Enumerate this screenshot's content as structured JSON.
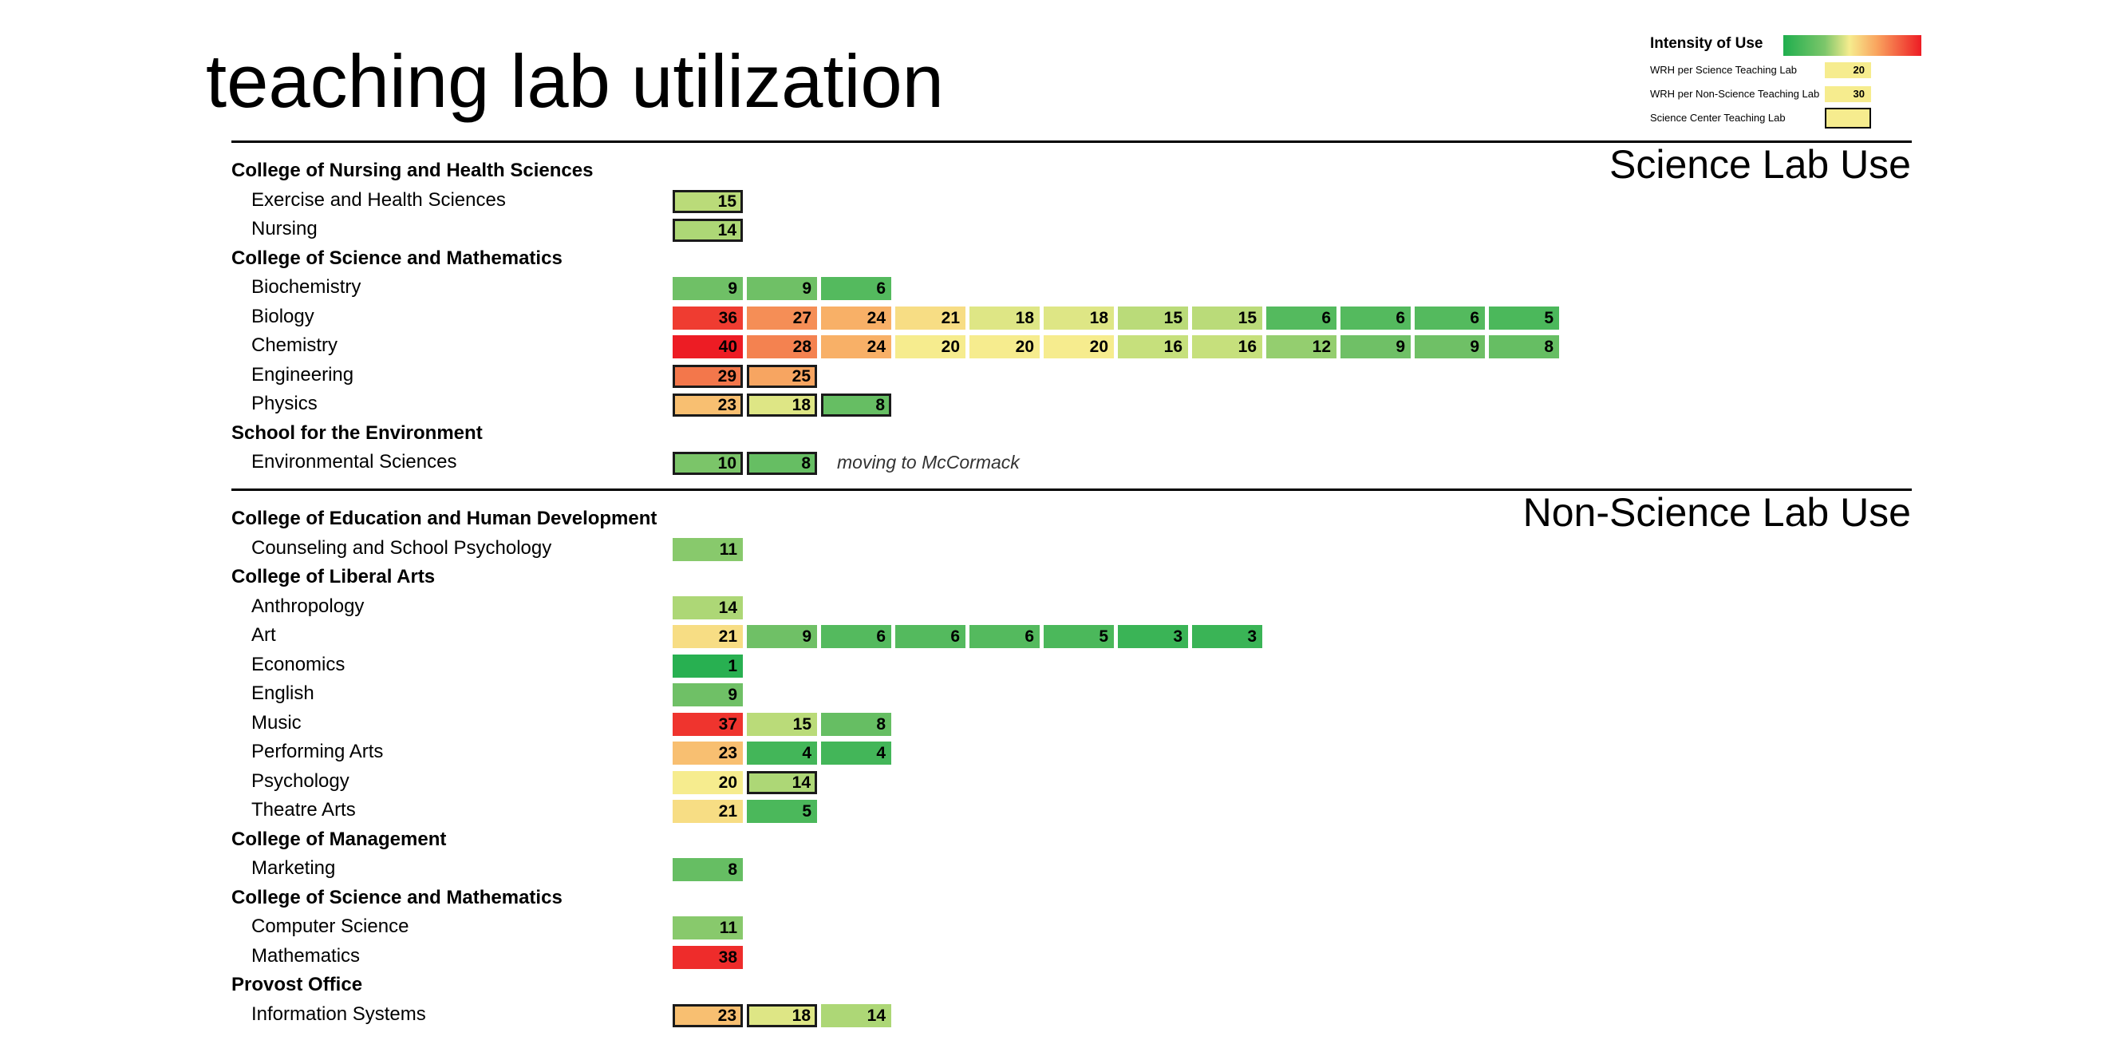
{
  "title": "teaching lab utilization",
  "legend": {
    "title": "Intensity of Use",
    "gradient_colors": [
      "#1fae4e",
      "#7cc66a",
      "#f6ec8e",
      "#f9a35e",
      "#ed1c24"
    ],
    "rows": [
      {
        "label": "WRH per Science Teaching Lab",
        "value": "20",
        "outlined": false
      },
      {
        "label": "WRH per Non-Science Teaching Lab",
        "value": "30",
        "outlined": false
      },
      {
        "label": "Science Center Teaching Lab",
        "value": "",
        "outlined": true
      }
    ]
  },
  "chart_data": {
    "type": "heatmap",
    "title": "teaching lab utilization",
    "color_scale": {
      "low": "#1fae4e",
      "mid": "#f6ec8e",
      "high": "#ed1c24"
    },
    "sections": [
      {
        "name": "Science Lab Use",
        "rows": [
          {
            "label": "College of Nursing and Health Sciences",
            "kind": "college",
            "values": []
          },
          {
            "label": "Exercise and Health Sciences",
            "kind": "dept",
            "values": [
              15
            ],
            "outlined": [
              true
            ]
          },
          {
            "label": "Nursing",
            "kind": "dept",
            "values": [
              14
            ],
            "outlined": [
              true
            ]
          },
          {
            "label": "College of Science and Mathematics",
            "kind": "college",
            "values": []
          },
          {
            "label": "Biochemistry",
            "kind": "dept",
            "values": [
              9,
              9,
              6
            ],
            "outlined": [
              false,
              false,
              false
            ]
          },
          {
            "label": "Biology",
            "kind": "dept",
            "values": [
              36,
              27,
              24,
              21,
              18,
              18,
              15,
              15,
              6,
              6,
              6,
              5
            ],
            "outlined": [
              false,
              false,
              false,
              false,
              false,
              false,
              false,
              false,
              false,
              false,
              false,
              false
            ]
          },
          {
            "label": "Chemistry",
            "kind": "dept",
            "values": [
              40,
              28,
              24,
              20,
              20,
              20,
              16,
              16,
              12,
              9,
              9,
              8
            ],
            "outlined": [
              false,
              false,
              false,
              false,
              false,
              false,
              false,
              false,
              false,
              false,
              false,
              false
            ]
          },
          {
            "label": "Engineering",
            "kind": "dept",
            "values": [
              29,
              25
            ],
            "outlined": [
              true,
              true
            ]
          },
          {
            "label": "Physics",
            "kind": "dept",
            "values": [
              23,
              18,
              8
            ],
            "outlined": [
              true,
              true,
              true
            ]
          },
          {
            "label": "School for the Environment",
            "kind": "college",
            "values": []
          },
          {
            "label": "Environmental Sciences",
            "kind": "dept",
            "values": [
              10,
              8
            ],
            "outlined": [
              true,
              true
            ],
            "note": "moving to McCormack"
          }
        ]
      },
      {
        "name": "Non-Science Lab Use",
        "rows": [
          {
            "label": "College of Education and Human Development",
            "kind": "college",
            "values": []
          },
          {
            "label": "Counseling and School Psychology",
            "kind": "dept",
            "values": [
              11
            ],
            "outlined": [
              false
            ]
          },
          {
            "label": "College of Liberal Arts",
            "kind": "college",
            "values": []
          },
          {
            "label": "Anthropology",
            "kind": "dept",
            "values": [
              14
            ],
            "outlined": [
              false
            ]
          },
          {
            "label": "Art",
            "kind": "dept",
            "values": [
              21,
              9,
              6,
              6,
              6,
              5,
              3,
              3
            ],
            "outlined": [
              false,
              false,
              false,
              false,
              false,
              false,
              false,
              false
            ]
          },
          {
            "label": "Economics",
            "kind": "dept",
            "values": [
              1
            ],
            "outlined": [
              false
            ]
          },
          {
            "label": "English",
            "kind": "dept",
            "values": [
              9
            ],
            "outlined": [
              false
            ]
          },
          {
            "label": "Music",
            "kind": "dept",
            "values": [
              37,
              15,
              8
            ],
            "outlined": [
              false,
              false,
              false
            ]
          },
          {
            "label": "Performing Arts",
            "kind": "dept",
            "values": [
              23,
              4,
              4
            ],
            "outlined": [
              false,
              false,
              false
            ]
          },
          {
            "label": "Psychology",
            "kind": "dept",
            "values": [
              20,
              14
            ],
            "outlined": [
              false,
              true
            ]
          },
          {
            "label": "Theatre Arts",
            "kind": "dept",
            "values": [
              21,
              5
            ],
            "outlined": [
              false,
              false
            ]
          },
          {
            "label": "College of Management",
            "kind": "college",
            "values": []
          },
          {
            "label": "Marketing",
            "kind": "dept",
            "values": [
              8
            ],
            "outlined": [
              false
            ]
          },
          {
            "label": "College of Science and Mathematics",
            "kind": "college",
            "values": []
          },
          {
            "label": "Computer Science",
            "kind": "dept",
            "values": [
              11
            ],
            "outlined": [
              false
            ]
          },
          {
            "label": "Mathematics",
            "kind": "dept",
            "values": [
              38
            ],
            "outlined": [
              false
            ]
          },
          {
            "label": "Provost Office",
            "kind": "college",
            "values": []
          },
          {
            "label": "Information Systems",
            "kind": "dept",
            "values": [
              23,
              18,
              14
            ],
            "outlined": [
              true,
              true,
              false
            ]
          }
        ]
      }
    ]
  }
}
